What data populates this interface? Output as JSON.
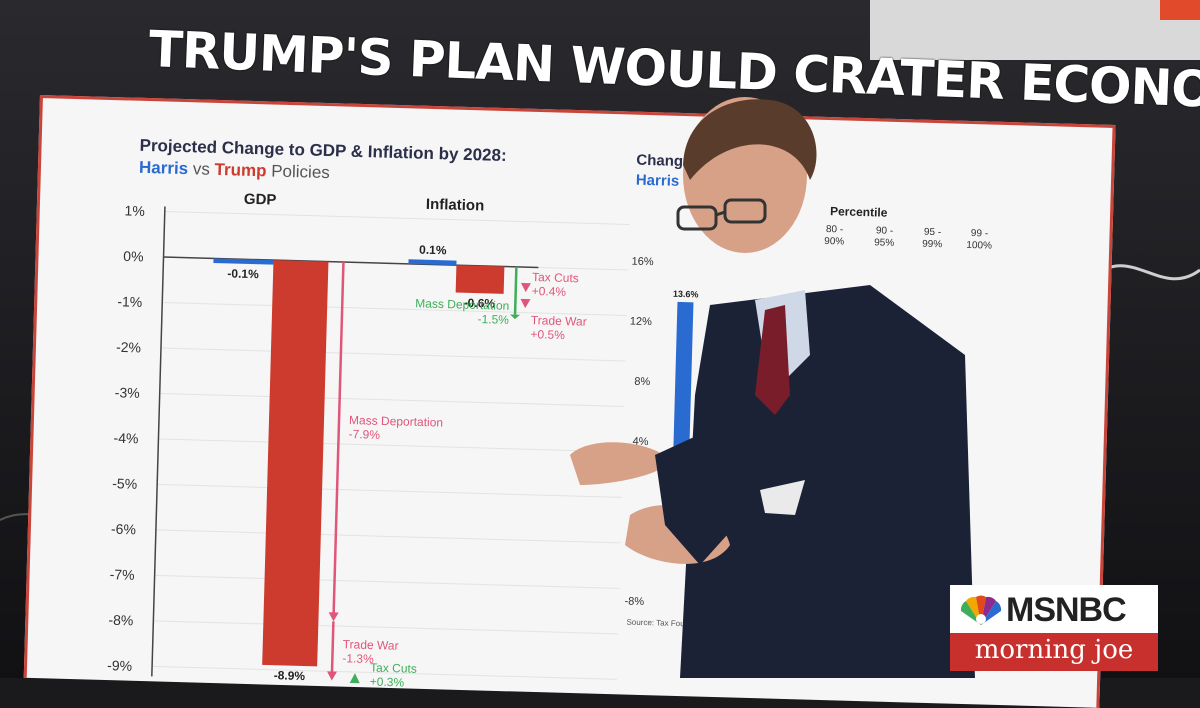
{
  "headline": "TRUMP'S PLAN WOULD CRATER ECONOMY",
  "chart_data": [
    {
      "type": "bar",
      "title": "Projected Change to GDP & Inflation by 2028:",
      "subtitle": {
        "harris": "Harris",
        "vs": " vs ",
        "trump": "Trump",
        "rest": " Policies"
      },
      "ylim": [
        -9,
        1
      ],
      "y_ticks": [
        "1%",
        "0%",
        "-1%",
        "-2%",
        "-3%",
        "-4%",
        "-5%",
        "-6%",
        "-7%",
        "-8%",
        "-9%"
      ],
      "groups": [
        {
          "name": "GDP",
          "series": [
            {
              "name": "Harris",
              "value": -0.1,
              "label": "-0.1%",
              "color": "#2a6bd1"
            },
            {
              "name": "Trump",
              "value": -8.9,
              "label": "-8.9%",
              "color": "#cc3b2e"
            }
          ],
          "components": [
            {
              "label": "Mass Deportation",
              "value": -7.9,
              "value_label": "-7.9%",
              "color": "#e0567a"
            },
            {
              "label": "Trade War",
              "value": -1.3,
              "value_label": "-1.3%",
              "color": "#e0567a"
            },
            {
              "label": "Tax Cuts",
              "value": 0.3,
              "value_label": "+0.3%",
              "color": "#3fae5a"
            }
          ]
        },
        {
          "name": "Inflation",
          "series": [
            {
              "name": "Harris",
              "value": 0.1,
              "label": "0.1%",
              "color": "#2a6bd1"
            },
            {
              "name": "Trump",
              "value": -0.6,
              "label": "-0.6%",
              "color": "#cc3b2e"
            }
          ],
          "components": [
            {
              "label": "Tax Cuts",
              "value": 0.4,
              "value_label": "+0.4%",
              "color": "#e0567a"
            },
            {
              "label": "Mass Deportation",
              "value": -1.5,
              "value_label": "-1.5%",
              "color": "#3fae5a"
            },
            {
              "label": "Trade War",
              "value": 0.5,
              "value_label": "+0.5%",
              "color": "#e0567a"
            }
          ]
        }
      ]
    },
    {
      "type": "bar",
      "title_partial": "Chang",
      "subtitle_partial": "Harris",
      "legend_partial": "Percentile",
      "x_groups": [
        "80 -\n90%",
        "90 -\n95%",
        "95 -\n99%",
        "99 -\n100%"
      ],
      "y_ticks": [
        "16%",
        "12%",
        "8%",
        "4%",
        "-8%"
      ],
      "bars": [
        {
          "name": "Harris",
          "value": 13.6,
          "label": "13.6%",
          "color": "#2a6bd1"
        }
      ],
      "source": "Source: Tax Foundatio"
    }
  ],
  "logo": {
    "network": "MSNBC",
    "show": "morning joe"
  }
}
